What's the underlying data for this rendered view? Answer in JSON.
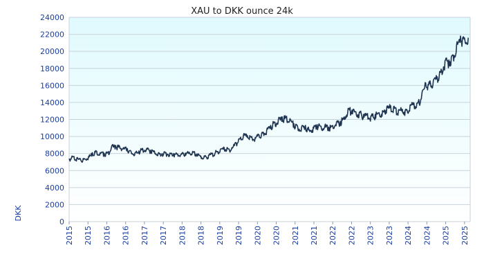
{
  "chart_data": {
    "type": "line",
    "title": "XAU to DKK ounce 24k",
    "ylabel": "DKK",
    "xlabel": "",
    "ylim": [
      0,
      24000
    ],
    "yticks": [
      0,
      2000,
      4000,
      6000,
      8000,
      10000,
      12000,
      14000,
      16000,
      18000,
      20000,
      22000,
      24000
    ],
    "xtick_labels": [
      "2015",
      "2015",
      "2016",
      "2016",
      "2017",
      "2017",
      "2018",
      "2018",
      "2019",
      "2019",
      "2020",
      "2020",
      "2021",
      "2021",
      "2022",
      "2022",
      "2023",
      "2023",
      "2024",
      "2024",
      "2025",
      "2025"
    ],
    "grid": "horizontal",
    "background_gradient": [
      "#e0fafd",
      "#ffffff"
    ],
    "line_color": "#1f3450",
    "grid_color": "#c8d2da",
    "series": [
      {
        "name": "",
        "x": [
          2015.0,
          2015.1,
          2015.2,
          2015.3,
          2015.4,
          2015.5,
          2015.6,
          2015.7,
          2015.8,
          2015.9,
          2016.0,
          2016.1,
          2016.2,
          2016.3,
          2016.4,
          2016.5,
          2016.6,
          2016.7,
          2016.8,
          2016.9,
          2017.0,
          2017.1,
          2017.2,
          2017.3,
          2017.4,
          2017.5,
          2017.6,
          2017.7,
          2017.8,
          2017.9,
          2018.0,
          2018.1,
          2018.2,
          2018.3,
          2018.4,
          2018.5,
          2018.6,
          2018.7,
          2018.8,
          2018.9,
          2019.0,
          2019.1,
          2019.2,
          2019.3,
          2019.4,
          2019.5,
          2019.6,
          2019.7,
          2019.8,
          2019.9,
          2020.0,
          2020.1,
          2020.2,
          2020.3,
          2020.4,
          2020.5,
          2020.6,
          2020.7,
          2020.8,
          2020.9,
          2021.0,
          2021.1,
          2021.2,
          2021.3,
          2021.4,
          2021.5,
          2021.6,
          2021.7,
          2021.8,
          2021.9,
          2022.0,
          2022.1,
          2022.2,
          2022.3,
          2022.4,
          2022.5,
          2022.6,
          2022.7,
          2022.8,
          2022.9,
          2023.0,
          2023.1,
          2023.2,
          2023.3,
          2023.4,
          2023.5,
          2023.6,
          2023.7,
          2023.8,
          2023.9,
          2024.0,
          2024.1,
          2024.2,
          2024.3,
          2024.4,
          2024.5,
          2024.6,
          2024.7,
          2024.8,
          2024.9,
          2025.0,
          2025.1,
          2025.2,
          2025.3
        ],
        "y": [
          7400,
          7650,
          7500,
          7250,
          7400,
          7650,
          8100,
          8300,
          8100,
          8050,
          8100,
          8900,
          8950,
          8850,
          8700,
          8600,
          8200,
          8100,
          8300,
          8550,
          8600,
          8400,
          8300,
          8050,
          8000,
          8100,
          8050,
          8000,
          7950,
          8000,
          8050,
          8150,
          8200,
          7950,
          7700,
          7650,
          7800,
          8050,
          8250,
          8450,
          8700,
          8550,
          8700,
          9300,
          9700,
          10200,
          10100,
          9900,
          9850,
          10200,
          10400,
          10800,
          11300,
          11700,
          12000,
          12300,
          12200,
          12100,
          11500,
          11100,
          11100,
          11300,
          10800,
          11100,
          11400,
          11200,
          11300,
          11100,
          11300,
          11700,
          11800,
          12300,
          13300,
          13100,
          12900,
          12800,
          12600,
          12700,
          12400,
          12600,
          12800,
          13000,
          13500,
          13600,
          13300,
          13100,
          13200,
          13100,
          13700,
          13900,
          13950,
          14900,
          16300,
          16200,
          16600,
          17000,
          17900,
          18900,
          19000,
          19600,
          20800,
          21800,
          21600,
          21600
        ]
      }
    ]
  }
}
